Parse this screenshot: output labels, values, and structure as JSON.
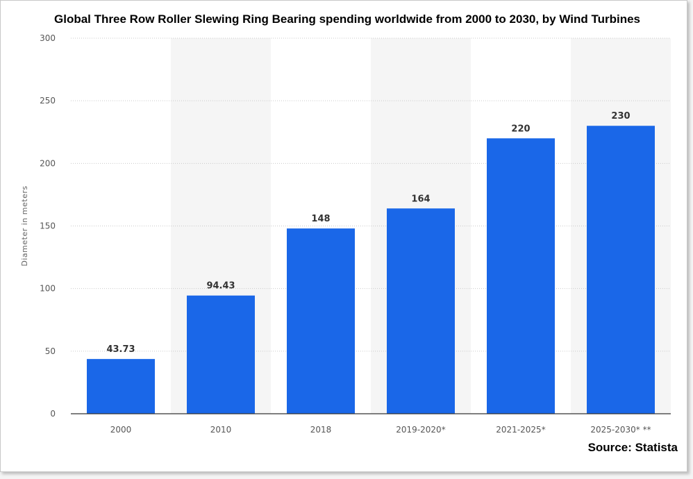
{
  "chart_data": {
    "type": "bar",
    "title": "Global Three Row Roller Slewing Ring Bearing spending worldwide from 2000 to 2030, by Wind Turbines",
    "xlabel": "",
    "ylabel": "Diameter in meters",
    "categories": [
      "2000",
      "2010",
      "2018",
      "2019-2020*",
      "2021-2025*",
      "2025-2030* **"
    ],
    "values": [
      43.73,
      94.43,
      148,
      164,
      220,
      230
    ],
    "value_labels": [
      "43.73",
      "94.43",
      "148",
      "164",
      "220",
      "230"
    ],
    "ylim": [
      0,
      300
    ],
    "yticks": [
      "0",
      "50",
      "100",
      "150",
      "200",
      "250",
      "300"
    ],
    "grid": true,
    "bar_color": "#1a67e8"
  },
  "source": "Source: Statista"
}
